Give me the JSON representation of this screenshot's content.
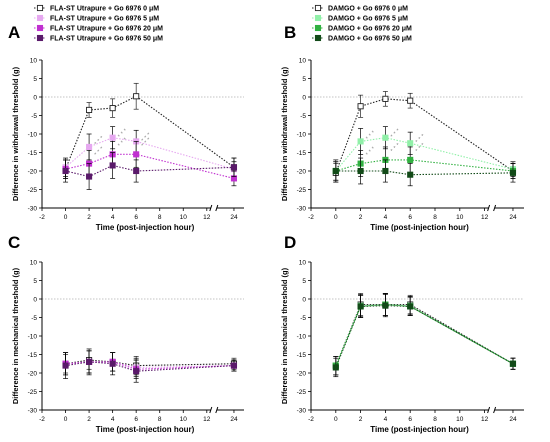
{
  "chart_data": [
    {
      "type": "line",
      "panel_label": "A",
      "xlabel": "Time (post-injection hour)",
      "ylabel": "Difference in withdrawal threshold (g)",
      "x_ticks": [
        "-2",
        "0",
        "2",
        "4",
        "6",
        "8",
        "10",
        "12",
        "24"
      ],
      "y_ticks": [
        "-30",
        "-25",
        "-20",
        "-15",
        "-10",
        "-5",
        "0",
        "5",
        "10"
      ],
      "ylim": [
        -30,
        10
      ],
      "grid": false,
      "legend_position": "top",
      "line_style": "dotted",
      "x": [
        0,
        2,
        4,
        6,
        24
      ],
      "series": [
        {
          "name": "FLA-ST Utrapure + Go 6976 0 μM",
          "color": "#222222",
          "fill": "#ffffff",
          "values": [
            -19.5,
            -3.5,
            -3,
            0.2,
            -19
          ],
          "err": [
            2.5,
            2,
            2.5,
            3.5,
            2.5
          ],
          "stars": [
            false,
            false,
            false,
            false,
            false
          ]
        },
        {
          "name": "FLA-ST Utrapure + Go 6976 5 μM",
          "color": "#e6a8f0",
          "fill": "#e6a8f0",
          "values": [
            -19,
            -13.5,
            -11,
            -12,
            -19.5
          ],
          "err": [
            2.5,
            3.5,
            3,
            3,
            2
          ],
          "stars": [
            false,
            true,
            true,
            true,
            false
          ]
        },
        {
          "name": "FLA-ST Utrapure + Go 6976 20 μM",
          "color": "#c030d0",
          "fill": "#c030d0",
          "values": [
            -19.5,
            -18,
            -15.5,
            -15.5,
            -22
          ],
          "err": [
            2.5,
            3.5,
            3.5,
            3.5,
            2
          ],
          "stars": [
            false,
            true,
            true,
            true,
            false
          ]
        },
        {
          "name": "FLA-ST Utrapure + Go 6976 50 μM",
          "color": "#5a1a6a",
          "fill": "#5a1a6a",
          "values": [
            -20,
            -21.5,
            -18.5,
            -20,
            -19
          ],
          "err": [
            3,
            3.5,
            3.5,
            3,
            2.5
          ],
          "stars": [
            false,
            false,
            false,
            false,
            false
          ]
        }
      ]
    },
    {
      "type": "line",
      "panel_label": "B",
      "xlabel": "Time (post-injection hour)",
      "ylabel": "Difference in withdrawal threshold (g)",
      "x_ticks": [
        "-2",
        "0",
        "2",
        "4",
        "6",
        "8",
        "10",
        "12",
        "24"
      ],
      "y_ticks": [
        "-30",
        "-25",
        "-20",
        "-15",
        "-10",
        "-5",
        "0",
        "5",
        "10"
      ],
      "ylim": [
        -30,
        10
      ],
      "grid": false,
      "legend_position": "top",
      "line_style": "dotted",
      "x": [
        0,
        2,
        4,
        6,
        24
      ],
      "series": [
        {
          "name": "DAMGO + Go 6976 0 μM",
          "color": "#222222",
          "fill": "#ffffff",
          "values": [
            -20.5,
            -2.5,
            -0.5,
            -1,
            -20
          ],
          "err": [
            2.5,
            3,
            2,
            2,
            2
          ],
          "stars": [
            false,
            false,
            false,
            false,
            false
          ]
        },
        {
          "name": "DAMGO + Go 6976 5 μM",
          "color": "#90f0a8",
          "fill": "#90f0a8",
          "values": [
            -20,
            -12,
            -11,
            -12.5,
            -19.5
          ],
          "err": [
            2.5,
            3.5,
            3,
            3,
            2
          ],
          "stars": [
            false,
            true,
            true,
            true,
            false
          ]
        },
        {
          "name": "DAMGO + Go 6976 20 μM",
          "color": "#30b040",
          "fill": "#30b040",
          "values": [
            -20,
            -18,
            -17,
            -17,
            -20
          ],
          "err": [
            2.5,
            3.5,
            3.5,
            3.5,
            2
          ],
          "stars": [
            false,
            true,
            true,
            true,
            false
          ]
        },
        {
          "name": "DAMGO + Go 6976 50 μM",
          "color": "#124a18",
          "fill": "#124a18",
          "values": [
            -20,
            -20,
            -20,
            -21,
            -20.5
          ],
          "err": [
            3,
            3.5,
            3,
            3,
            2.5
          ],
          "stars": [
            false,
            false,
            false,
            false,
            false
          ]
        }
      ]
    },
    {
      "type": "line",
      "panel_label": "C",
      "xlabel": "Time (post-injection hour)",
      "ylabel": "Difference in mechanical threshold (g)",
      "x_ticks": [
        "-2",
        "0",
        "2",
        "4",
        "6",
        "8",
        "10",
        "12",
        "24"
      ],
      "y_ticks": [
        "-30",
        "-25",
        "-20",
        "-15",
        "-10",
        "-5",
        "0",
        "5",
        "10"
      ],
      "ylim": [
        -30,
        10
      ],
      "grid": false,
      "legend_position": "none",
      "line_style": "dotted",
      "x": [
        0,
        2,
        4,
        6,
        24
      ],
      "series": [
        {
          "name": "",
          "color": "#222222",
          "fill": "#ffffff",
          "values": [
            -17.5,
            -16.5,
            -17,
            -18,
            -17.5
          ],
          "err": [
            2.5,
            2.5,
            2.5,
            2.5,
            1.5
          ],
          "stars": [
            false,
            false,
            false,
            false,
            false
          ]
        },
        {
          "name": "",
          "color": "#e6a8f0",
          "fill": "#e6a8f0",
          "values": [
            -17.5,
            -17,
            -17,
            -18.5,
            -18
          ],
          "err": [
            3,
            3,
            2.5,
            2.5,
            1.5
          ],
          "stars": [
            false,
            false,
            false,
            false,
            false
          ]
        },
        {
          "name": "",
          "color": "#c030d0",
          "fill": "#c030d0",
          "values": [
            -17.5,
            -17,
            -17,
            -19,
            -18
          ],
          "err": [
            3,
            3,
            2.5,
            2.5,
            1.5
          ],
          "stars": [
            false,
            false,
            false,
            false,
            false
          ]
        },
        {
          "name": "",
          "color": "#5a1a6a",
          "fill": "#5a1a6a",
          "values": [
            -18,
            -17,
            -17.5,
            -19.5,
            -18
          ],
          "err": [
            3.5,
            3.5,
            3,
            3,
            1.5
          ],
          "stars": [
            false,
            false,
            false,
            false,
            false
          ]
        }
      ]
    },
    {
      "type": "line",
      "panel_label": "D",
      "xlabel": "Time (post-injection hour)",
      "ylabel": "Difference in mechanical threshold (g)",
      "x_ticks": [
        "-2",
        "0",
        "2",
        "4",
        "6",
        "8",
        "10",
        "12",
        "24"
      ],
      "y_ticks": [
        "-30",
        "-25",
        "-20",
        "-15",
        "-10",
        "-5",
        "0",
        "5",
        "10"
      ],
      "ylim": [
        -30,
        10
      ],
      "grid": false,
      "legend_position": "none",
      "line_style": "dotted",
      "x": [
        0,
        2,
        4,
        6,
        24
      ],
      "series": [
        {
          "name": "",
          "color": "#222222",
          "fill": "#ffffff",
          "values": [
            -18,
            -1.5,
            -1.5,
            -1.5,
            -17.5
          ],
          "err": [
            2.5,
            3,
            3,
            2.5,
            1.5
          ],
          "stars": [
            false,
            false,
            false,
            false,
            false
          ]
        },
        {
          "name": "",
          "color": "#90f0a8",
          "fill": "#90f0a8",
          "values": [
            -18,
            -1.8,
            -1.5,
            -1.8,
            -17.5
          ],
          "err": [
            2.5,
            3,
            3,
            2.5,
            1.5
          ],
          "stars": [
            false,
            false,
            false,
            false,
            false
          ]
        },
        {
          "name": "",
          "color": "#30b040",
          "fill": "#30b040",
          "values": [
            -18,
            -2,
            -1.5,
            -2,
            -17.5
          ],
          "err": [
            2.5,
            3,
            3,
            2.5,
            1.5
          ],
          "stars": [
            false,
            false,
            false,
            false,
            false
          ]
        },
        {
          "name": "",
          "color": "#124a18",
          "fill": "#124a18",
          "values": [
            -18.5,
            -2,
            -1.8,
            -2,
            -17.5
          ],
          "err": [
            2.5,
            3,
            3,
            2.5,
            1.5
          ],
          "stars": [
            false,
            false,
            false,
            false,
            false
          ]
        }
      ]
    }
  ]
}
